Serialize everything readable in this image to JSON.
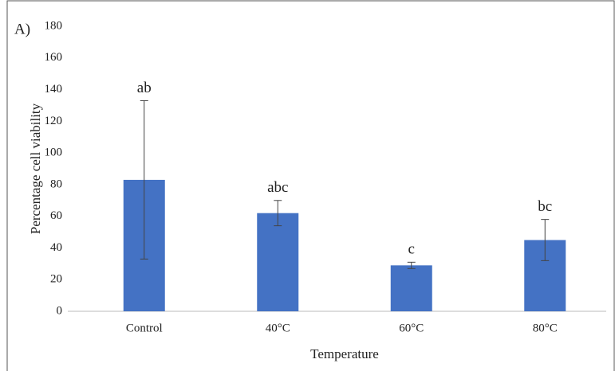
{
  "chart_data": {
    "type": "bar",
    "panel_label": "A)",
    "x_label": "Temperature",
    "y_label": "Percentage cell viability",
    "categories": [
      "Control",
      "40°C",
      "60°C",
      "80°C"
    ],
    "values": [
      83,
      62,
      29,
      45
    ],
    "errors": [
      50,
      8,
      2,
      13
    ],
    "annotations": [
      "ab",
      "abc",
      "c",
      "bc"
    ],
    "color": "#4472c4",
    "ylim": [
      0,
      180
    ],
    "yticks": [
      0,
      20,
      40,
      60,
      80,
      100,
      120,
      140,
      160,
      180
    ],
    "grid": false
  }
}
